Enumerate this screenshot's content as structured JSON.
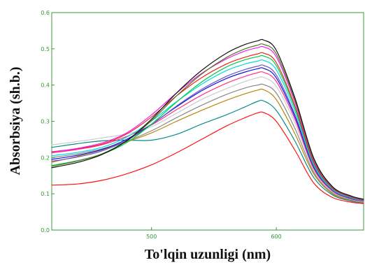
{
  "chart_data": {
    "type": "line",
    "xlabel": "To'lqin uzunligi (nm)",
    "ylabel": "Absorbsiya (sh.b.)",
    "xlim": [
      420,
      670
    ],
    "ylim": [
      0,
      0.6
    ],
    "x_ticks": [
      500,
      600
    ],
    "x_tick_labels": [
      "500",
      "600"
    ],
    "y_ticks": [
      0,
      0.1,
      0.2,
      0.3,
      0.4,
      0.5,
      0.6
    ],
    "y_tick_labels": [
      "0.0",
      "0.1",
      "0.2",
      "0.3",
      "0.4",
      "0.5",
      "0.6"
    ],
    "grid": false,
    "x": [
      420,
      440,
      460,
      480,
      500,
      520,
      540,
      560,
      575,
      585,
      590,
      600,
      615,
      630,
      645,
      660,
      670
    ],
    "series": [
      {
        "color": "#ff1111",
        "values": [
          0.124,
          0.127,
          0.137,
          0.155,
          0.18,
          0.213,
          0.25,
          0.287,
          0.31,
          0.323,
          0.324,
          0.3,
          0.22,
          0.13,
          0.09,
          0.077,
          0.073
        ]
      },
      {
        "color": "#0a8a8a",
        "values": [
          0.228,
          0.238,
          0.246,
          0.248,
          0.248,
          0.264,
          0.292,
          0.318,
          0.34,
          0.355,
          0.356,
          0.33,
          0.245,
          0.145,
          0.097,
          0.08,
          0.075
        ]
      },
      {
        "color": "#b8860b",
        "values": [
          0.187,
          0.203,
          0.221,
          0.243,
          0.268,
          0.3,
          0.33,
          0.358,
          0.376,
          0.386,
          0.387,
          0.36,
          0.265,
          0.155,
          0.1,
          0.082,
          0.076
        ]
      },
      {
        "color": "#888888",
        "values": [
          0.2,
          0.21,
          0.224,
          0.245,
          0.274,
          0.31,
          0.344,
          0.374,
          0.392,
          0.4,
          0.401,
          0.378,
          0.28,
          0.16,
          0.103,
          0.083,
          0.077
        ]
      },
      {
        "color": "#cccccc",
        "values": [
          0.235,
          0.244,
          0.254,
          0.265,
          0.285,
          0.322,
          0.36,
          0.39,
          0.41,
          0.42,
          0.421,
          0.396,
          0.295,
          0.166,
          0.106,
          0.085,
          0.078
        ]
      },
      {
        "color": "#ff3388",
        "values": [
          0.213,
          0.222,
          0.235,
          0.258,
          0.29,
          0.332,
          0.372,
          0.405,
          0.424,
          0.434,
          0.435,
          0.41,
          0.305,
          0.17,
          0.108,
          0.086,
          0.079
        ]
      },
      {
        "color": "#1111dd",
        "values": [
          0.195,
          0.206,
          0.222,
          0.25,
          0.292,
          0.34,
          0.384,
          0.418,
          0.436,
          0.445,
          0.446,
          0.42,
          0.312,
          0.174,
          0.11,
          0.087,
          0.08
        ]
      },
      {
        "color": "#6655cc",
        "values": [
          0.19,
          0.201,
          0.218,
          0.247,
          0.291,
          0.342,
          0.388,
          0.424,
          0.443,
          0.452,
          0.454,
          0.428,
          0.318,
          0.177,
          0.111,
          0.088,
          0.08
        ]
      },
      {
        "color": "#00dddd",
        "values": [
          0.205,
          0.214,
          0.228,
          0.256,
          0.301,
          0.354,
          0.402,
          0.44,
          0.458,
          0.466,
          0.468,
          0.442,
          0.328,
          0.181,
          0.113,
          0.089,
          0.081
        ]
      },
      {
        "color": "#00cc44",
        "values": [
          0.178,
          0.191,
          0.209,
          0.241,
          0.292,
          0.353,
          0.408,
          0.45,
          0.47,
          0.478,
          0.48,
          0.454,
          0.336,
          0.185,
          0.115,
          0.09,
          0.082
        ]
      },
      {
        "color": "#ee2222",
        "values": [
          0.216,
          0.224,
          0.237,
          0.265,
          0.312,
          0.37,
          0.42,
          0.458,
          0.477,
          0.486,
          0.488,
          0.462,
          0.342,
          0.188,
          0.116,
          0.091,
          0.082
        ]
      },
      {
        "color": "#ee22ee",
        "values": [
          0.215,
          0.225,
          0.24,
          0.268,
          0.318,
          0.378,
          0.432,
          0.472,
          0.494,
          0.503,
          0.505,
          0.478,
          0.352,
          0.193,
          0.118,
          0.092,
          0.083
        ]
      },
      {
        "color": "#557722",
        "values": [
          0.176,
          0.19,
          0.21,
          0.246,
          0.302,
          0.37,
          0.43,
          0.476,
          0.5,
          0.51,
          0.512,
          0.486,
          0.358,
          0.196,
          0.119,
          0.093,
          0.084
        ]
      },
      {
        "color": "#111111",
        "values": [
          0.172,
          0.186,
          0.208,
          0.246,
          0.306,
          0.378,
          0.44,
          0.488,
          0.512,
          0.522,
          0.524,
          0.496,
          0.364,
          0.199,
          0.12,
          0.094,
          0.085
        ]
      }
    ]
  }
}
